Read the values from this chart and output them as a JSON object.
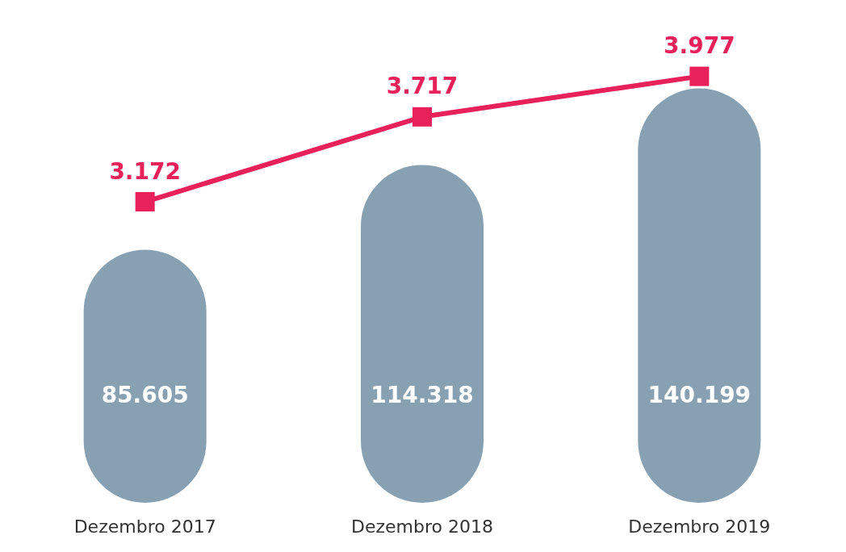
{
  "chart_data": {
    "type": "bar",
    "categories": [
      "Dezembro 2017",
      "Dezembro 2018",
      "Dezembro 2019"
    ],
    "marker": "square",
    "tick_labels": "x",
    "series": [
      {
        "color": "#87a1b3",
        "values": [
          85605,
          114318,
          140199
        ],
        "value_labels": [
          "85.605",
          "114.318",
          "140.199"
        ]
      },
      {
        "type": "line",
        "axis": "y2",
        "color": "#e8215a",
        "values": [
          3172,
          3717,
          3977
        ],
        "value_labels": [
          "3.172",
          "3.717",
          "3.977"
        ]
      }
    ]
  }
}
